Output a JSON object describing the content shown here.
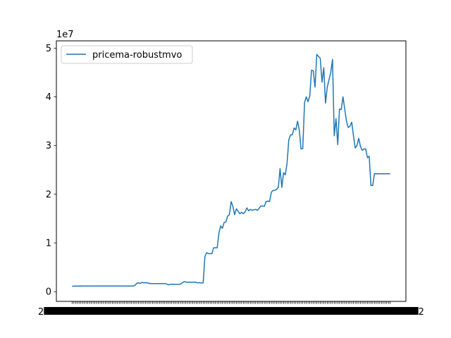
{
  "chart_data": {
    "type": "line",
    "title": "",
    "xlabel": "",
    "ylabel": "",
    "y_offset_text": "1e7",
    "ylim": [
      -2000000,
      51500000
    ],
    "yticks": [
      0,
      10000000,
      20000000,
      30000000,
      40000000,
      50000000
    ],
    "ytick_labels": [
      "0",
      "1",
      "2",
      "3",
      "4",
      "5"
    ],
    "grid": false,
    "legend_position": "upper-left",
    "x_tick_labels_start": "2",
    "x_tick_labels_end": "2",
    "series": [
      {
        "name": "pricema-robustmvo",
        "color": "#1f77b4",
        "values": [
          1100000,
          1120000,
          1140000,
          1150000,
          1150000,
          1160000,
          1150000,
          1160000,
          1160000,
          1150000,
          1160000,
          1170000,
          1160000,
          1160000,
          1170000,
          1160000,
          1170000,
          1160000,
          1160000,
          1160000,
          1170000,
          1170000,
          1170000,
          1160000,
          1160000,
          1170000,
          1160000,
          1160000,
          1170000,
          1160000,
          1160000,
          1150000,
          1160000,
          1160000,
          1160000,
          1160000,
          1300000,
          1700000,
          1800000,
          1700000,
          1900000,
          1800000,
          1850000,
          1800000,
          1700000,
          1650000,
          1650000,
          1650000,
          1650000,
          1650000,
          1650000,
          1650000,
          1650000,
          1650000,
          1600000,
          1400000,
          1500000,
          1550000,
          1500000,
          1500000,
          1500000,
          1500000,
          1550000,
          1800000,
          2050000,
          2000000,
          1900000,
          1950000,
          1900000,
          1950000,
          1950000,
          1900000,
          1800000,
          1850000,
          1800000,
          1800000,
          7200000,
          8000000,
          7800000,
          7800000,
          7800000,
          9000000,
          9000000,
          9000000,
          12000000,
          13500000,
          13000000,
          14200000,
          14300000,
          15500000,
          15800000,
          18500000,
          17500000,
          15800000,
          17000000,
          16500000,
          16000000,
          16300000,
          16000000,
          16400000,
          17200000,
          16600000,
          16900000,
          16700000,
          16800000,
          16900000,
          16700000,
          17100000,
          17600000,
          17600000,
          17500000,
          18500000,
          18600000,
          18500000,
          20400000,
          20800000,
          20800000,
          21000000,
          21400000,
          25300000,
          21400000,
          24400000,
          24000000,
          26400000,
          31200000,
          32200000,
          32200000,
          33600000,
          33200000,
          35000000,
          33200000,
          29300000,
          29400000,
          38800000,
          40000000,
          39000000,
          40200000,
          45500000,
          45300000,
          42000000,
          48700000,
          48300000,
          47900000,
          43000000,
          46000000,
          38700000,
          42000000,
          43500000,
          45000000,
          47700000,
          32000000,
          35500000,
          30200000,
          37500000,
          37400000,
          40000000,
          37500000,
          35000000,
          33700000,
          34000000,
          34800000,
          32000000,
          29500000,
          30000000,
          31500000,
          29800000,
          29000000,
          29300000,
          29300000,
          27500000,
          27800000,
          21800000,
          21800000,
          24200000,
          24200000,
          24200000,
          24200000,
          24200000,
          24200000,
          24200000,
          24200000,
          24200000,
          24200000
        ]
      }
    ]
  }
}
